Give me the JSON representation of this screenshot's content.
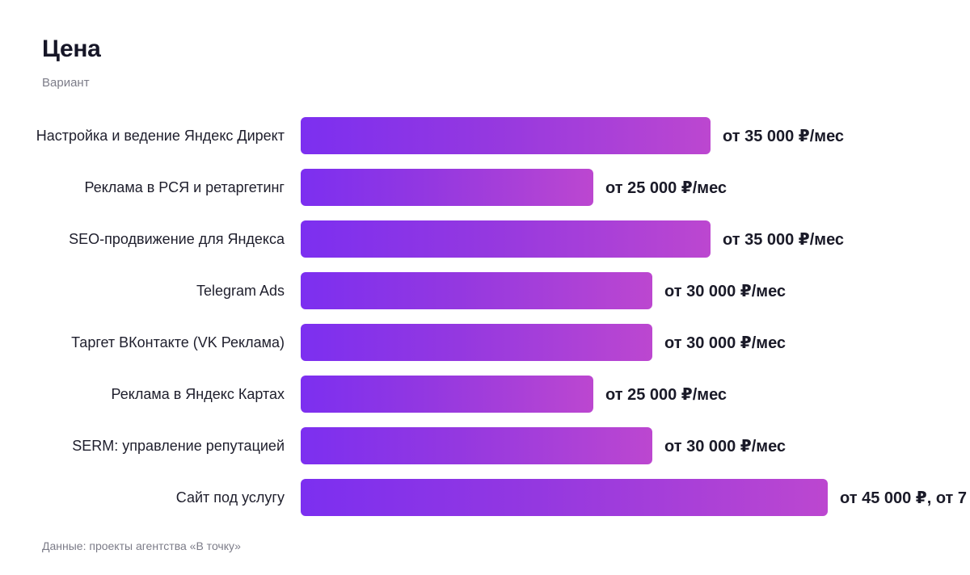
{
  "chart_data": {
    "type": "bar",
    "orientation": "horizontal",
    "title": "Цена",
    "subtitle": "Вариант",
    "categories": [
      "Настройка и ведение Яндекс Директ",
      "Реклама в РСЯ и ретаргетинг",
      "SEO-продвижение для Яндекса",
      "Telegram Ads",
      "Таргет ВКонтакте (VK Реклама)",
      "Реклама в Яндекс Картах",
      "SERM: управление репутацией",
      "Сайт под услугу"
    ],
    "values": [
      35000,
      25000,
      35000,
      30000,
      30000,
      25000,
      30000,
      45000
    ],
    "labels": [
      "от 35 000 ₽/мес",
      "от 25 000 ₽/мес",
      "от 35 000 ₽/мес",
      "от 30 000 ₽/мес",
      "от 30 000 ₽/мес",
      "от 25 000 ₽/мес",
      "от 30 000 ₽/мес",
      "от 45 000 ₽, от 7"
    ],
    "colors": {
      "gradient_start": "#7c2ff0",
      "gradient_end": "#bc47d0"
    }
  },
  "source": "Данные: проекты агентства «В точку»"
}
